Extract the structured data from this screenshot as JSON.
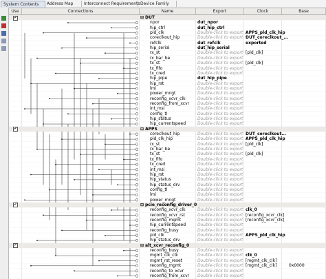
{
  "tabs": [
    "System Contents",
    "Address Map",
    "Interconnect Requirements",
    "Device Family"
  ],
  "columns": [
    "Use",
    "Connections",
    "Name",
    "Export",
    "Clock",
    "Base"
  ],
  "rows": [
    {
      "name": "DUT",
      "component": true
    },
    {
      "name": "npor",
      "export": "dut_npor"
    },
    {
      "name": "hip_ctrl",
      "export": "dut_hip_ctrl"
    },
    {
      "name": "pld_clk",
      "export": "Double-click to export",
      "clock": "APPS_pld_clk_hip"
    },
    {
      "name": "coreclkout_hip",
      "export": "Double-click to export",
      "clock": "DUT_coreclkout_..."
    },
    {
      "name": "refclk",
      "export": "dut_refclk",
      "clock": "exported"
    },
    {
      "name": "hip_serial",
      "export": "dut_hip_serial"
    },
    {
      "name": "rx_st",
      "export": "Double-click to export",
      "clock": "[pld_clk]"
    },
    {
      "name": "rx_bar_be",
      "export": "Double-click to export"
    },
    {
      "name": "tx_st",
      "export": "Double-click to export",
      "clock": "[pld_clk]"
    },
    {
      "name": "tx_fifo",
      "export": "Double-click to export"
    },
    {
      "name": "tx_cred",
      "export": "Double-click to export"
    },
    {
      "name": "hip_pipe",
      "export": "dut_hip_pipe"
    },
    {
      "name": "hip_rst",
      "export": "Double-click to export"
    },
    {
      "name": "lmi",
      "export": "Double-click to export"
    },
    {
      "name": "power_mngt",
      "export": "Double-click to export"
    },
    {
      "name": "reconfig_xcvr_clk",
      "export": "Double-click to export"
    },
    {
      "name": "reconfig_from_xcvr",
      "export": "Double-click to export"
    },
    {
      "name": "int_msi",
      "export": "Double-click to export"
    },
    {
      "name": "config_tl",
      "export": "Double-click to export"
    },
    {
      "name": "hip_status",
      "export": "Double-click to export"
    },
    {
      "name": "hip_currentspeed",
      "export": "Double-click to export"
    },
    {
      "name": "APPS",
      "component": true
    },
    {
      "name": "coreclkout_hip",
      "export": "Double-click to export",
      "clock": "DUT_coreclkout..."
    },
    {
      "name": "pld_clk_hip",
      "export": "Double-click to export",
      "clock": "APPS_pld_clk_hip"
    },
    {
      "name": "rx_st",
      "export": "Double-click to export",
      "clock": "[pld_clk]"
    },
    {
      "name": "rx_bar_be",
      "export": "Double-click to export"
    },
    {
      "name": "tx_st",
      "export": "Double-click to export",
      "clock": "[pld_clk]"
    },
    {
      "name": "tx_fifo",
      "export": "Double-click to export"
    },
    {
      "name": "tx_cred",
      "export": "Double-click to export"
    },
    {
      "name": "int_msi",
      "export": "Double-click to export"
    },
    {
      "name": "hip_rst",
      "export": "Double-click to export"
    },
    {
      "name": "hip_status",
      "export": "Double-click to export"
    },
    {
      "name": "hip_status_drv",
      "export": "Double-click to export"
    },
    {
      "name": "config_tl",
      "export": "Double-click to export"
    },
    {
      "name": "lmi",
      "export": "Double-click to export"
    },
    {
      "name": "power_mngt",
      "export": "Double-click to export"
    },
    {
      "name": "pcie_reconfig_driver_0",
      "component": true
    },
    {
      "name": "reconfig_xcvr_clk",
      "export": "Double-click to export",
      "clock": "clk_0"
    },
    {
      "name": "reconfig_xcvr_rst",
      "export": "Double-click to export",
      "clock": "[reconfig_xcvr_clk]"
    },
    {
      "name": "reconfig_mgmt",
      "export": "Double-click to export",
      "clock": "[reconfig_xcvr_clk]"
    },
    {
      "name": "hip_currentspeed",
      "export": "Double-click to export"
    },
    {
      "name": "reconfig_busy",
      "export": "Double-click to export"
    },
    {
      "name": "pld_clk",
      "export": "Double-click to export",
      "clock": "APPS_pld_clk_hip"
    },
    {
      "name": "hip_status_drv",
      "export": "Double-click to export"
    },
    {
      "name": "alt_xcvr_reconfig_0",
      "component": true
    },
    {
      "name": "reconfig_busy",
      "export": "Double-click to export"
    },
    {
      "name": "mgmt_clk_clk",
      "export": "Double-click to export",
      "clock": "clk_0"
    },
    {
      "name": "mgmt_rst_reset",
      "export": "Double-click to export",
      "clock": "[mgmt_clk_clk]"
    },
    {
      "name": "reconfig_mgmt",
      "export": "Double-click to export",
      "clock": "[mgmt_clk_clk]",
      "base": "0x0000"
    },
    {
      "name": "reconfig_to_xcvr",
      "export": "Double-click to export"
    },
    {
      "name": "reconfig_from_xcvr",
      "export": "Double-click to export"
    }
  ]
}
